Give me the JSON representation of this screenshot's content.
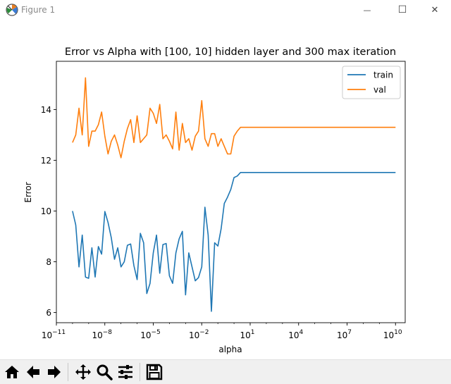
{
  "window": {
    "title": "Figure 1",
    "minimize_glyph": "—",
    "maximize_glyph": "☐",
    "close_glyph": "✕"
  },
  "toolbar": {
    "icons": [
      "home-icon",
      "back-arrow-icon",
      "forward-arrow-icon",
      "pan-icon",
      "zoom-icon",
      "configure-subplots-icon",
      "save-icon"
    ]
  },
  "chart_data": {
    "type": "line",
    "title": "Error vs Alpha with [100, 10] hidden layer and 300 max iteration",
    "xlabel": "alpha",
    "ylabel": "Error",
    "xscale": "log",
    "xlim_exp": [
      -11,
      10.6
    ],
    "ylim": [
      5.6,
      15.9
    ],
    "xticks": [
      {
        "exp": -11,
        "label": "10",
        "sup": "−11"
      },
      {
        "exp": -8,
        "label": "10",
        "sup": "−8"
      },
      {
        "exp": -5,
        "label": "10",
        "sup": "−5"
      },
      {
        "exp": -2,
        "label": "10",
        "sup": "−2"
      },
      {
        "exp": 1,
        "label": "10",
        "sup": "1"
      },
      {
        "exp": 4,
        "label": "10",
        "sup": "4"
      },
      {
        "exp": 7,
        "label": "10",
        "sup": "7"
      },
      {
        "exp": 10,
        "label": "10",
        "sup": "10"
      }
    ],
    "yticks": [
      6,
      8,
      10,
      12,
      14
    ],
    "grid": false,
    "legend": "top-right",
    "series": [
      {
        "name": "train",
        "color": "#1f77b4",
        "log10_x": [
          -10.0,
          -9.8,
          -9.6,
          -9.4,
          -9.2,
          -9.0,
          -8.8,
          -8.6,
          -8.4,
          -8.2,
          -8.0,
          -7.8,
          -7.6,
          -7.4,
          -7.2,
          -7.0,
          -6.8,
          -6.6,
          -6.4,
          -6.2,
          -6.0,
          -5.8,
          -5.6,
          -5.4,
          -5.2,
          -5.0,
          -4.8,
          -4.6,
          -4.4,
          -4.2,
          -4.0,
          -3.8,
          -3.6,
          -3.4,
          -3.2,
          -3.0,
          -2.8,
          -2.6,
          -2.4,
          -2.2,
          -2.0,
          -1.8,
          -1.6,
          -1.4,
          -1.2,
          -1.0,
          -0.8,
          -0.6,
          -0.4,
          -0.2,
          0.0,
          0.2,
          0.4,
          0.6,
          10.0
        ],
        "y": [
          10.0,
          9.45,
          7.8,
          9.05,
          7.4,
          7.35,
          8.55,
          7.4,
          8.6,
          8.3,
          9.98,
          9.55,
          8.95,
          8.1,
          8.55,
          7.8,
          8.0,
          8.65,
          8.7,
          7.85,
          7.3,
          9.12,
          8.75,
          6.75,
          7.15,
          8.35,
          9.05,
          7.55,
          8.68,
          8.72,
          7.45,
          7.15,
          8.35,
          8.9,
          9.2,
          6.7,
          8.35,
          7.8,
          7.25,
          7.38,
          7.8,
          10.15,
          9.05,
          6.05,
          8.75,
          8.62,
          9.3,
          10.3,
          10.55,
          10.85,
          11.32,
          11.38,
          11.52,
          11.52,
          11.52
        ]
      },
      {
        "name": "val",
        "color": "#ff7f0e",
        "log10_x": [
          -10.0,
          -9.8,
          -9.6,
          -9.4,
          -9.2,
          -9.0,
          -8.8,
          -8.6,
          -8.4,
          -8.2,
          -8.0,
          -7.8,
          -7.6,
          -7.4,
          -7.2,
          -7.0,
          -6.8,
          -6.6,
          -6.4,
          -6.2,
          -6.0,
          -5.8,
          -5.6,
          -5.4,
          -5.2,
          -5.0,
          -4.8,
          -4.6,
          -4.4,
          -4.2,
          -4.0,
          -3.8,
          -3.6,
          -3.4,
          -3.2,
          -3.0,
          -2.8,
          -2.6,
          -2.4,
          -2.2,
          -2.0,
          -1.8,
          -1.6,
          -1.4,
          -1.2,
          -1.0,
          -0.8,
          -0.6,
          -0.4,
          -0.2,
          0.0,
          0.2,
          0.4,
          0.6,
          10.0
        ],
        "y": [
          12.7,
          13.0,
          14.05,
          13.0,
          15.25,
          12.55,
          13.15,
          13.15,
          13.4,
          13.9,
          12.95,
          12.25,
          12.75,
          13.0,
          12.6,
          12.1,
          12.75,
          13.25,
          13.6,
          12.7,
          13.75,
          12.7,
          12.85,
          13.0,
          14.05,
          13.85,
          13.45,
          14.2,
          12.85,
          13.0,
          12.75,
          12.45,
          13.9,
          12.4,
          13.45,
          12.7,
          12.85,
          12.4,
          12.95,
          13.15,
          14.35,
          12.85,
          12.55,
          13.05,
          13.05,
          12.55,
          12.85,
          12.55,
          12.25,
          12.25,
          12.95,
          13.15,
          13.3,
          13.3,
          13.3
        ]
      }
    ]
  }
}
